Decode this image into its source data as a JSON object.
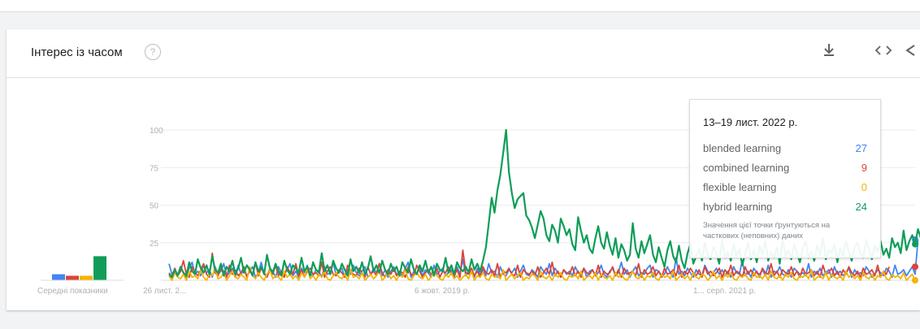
{
  "card": {
    "title": "Інтерес із часом",
    "help_icon": "help-circle-icon",
    "icons": [
      "download-icon",
      "embed-icon",
      "share-icon"
    ]
  },
  "average": {
    "label": "Середні показники",
    "values": [
      4,
      3,
      3,
      16
    ]
  },
  "tooltip": {
    "date": "13–19 лист. 2022 р.",
    "rows": [
      {
        "name": "blended learning",
        "value": "27",
        "color": "#4285f4"
      },
      {
        "name": "combined learning",
        "value": "9",
        "color": "#db4437"
      },
      {
        "name": "flexible learning",
        "value": "0",
        "color": "#f4b400"
      },
      {
        "name": "hybrid learning",
        "value": "24",
        "color": "#0f9d58"
      }
    ],
    "note": "Значення цієї точки ґрунтуються на часткових (неповних) даних"
  },
  "chart_data": {
    "type": "line",
    "title": "Інтерес із часом",
    "ylim": [
      0,
      100
    ],
    "yticks": [
      "100",
      "75",
      "50",
      "25"
    ],
    "xtick_labels": [
      "26 лист. 2...",
      "6 жовт. 2019 р.",
      "1... серп. 2021 р."
    ],
    "grid": true,
    "x_start": "2017-11-26",
    "x_end": "2022-11-19",
    "weeks": 260,
    "series": [
      {
        "name": "blended learning",
        "color": "#4285f4",
        "values": [
          11,
          4,
          7,
          3,
          9,
          5,
          2,
          8,
          12,
          4,
          6,
          3,
          10,
          5,
          7,
          2,
          9,
          4,
          6,
          11,
          3,
          5,
          8,
          2,
          10,
          4,
          7,
          3,
          6,
          9,
          2,
          5,
          12,
          4,
          3,
          8,
          6,
          2,
          9,
          5,
          4,
          7,
          11,
          3,
          6,
          2,
          8,
          5,
          10,
          4,
          3,
          7,
          6,
          2,
          9,
          4,
          5,
          12,
          3,
          6,
          8,
          2,
          7,
          4,
          10,
          5,
          3,
          6,
          9,
          2,
          4,
          8,
          5,
          11,
          3,
          7,
          2,
          6,
          9,
          4,
          5,
          3,
          8,
          12,
          2,
          6,
          4,
          9,
          3,
          7,
          5,
          2,
          10,
          4,
          6,
          8,
          3,
          5,
          7,
          2,
          9,
          4,
          14,
          3,
          6,
          5,
          2,
          8,
          4,
          7,
          3,
          11,
          5,
          6,
          2,
          9,
          4,
          3,
          7,
          5,
          8,
          2,
          6,
          10,
          4,
          3,
          7,
          5,
          2,
          9,
          6,
          4,
          11,
          3,
          8,
          5,
          2,
          7,
          4,
          6,
          3,
          9,
          5,
          4,
          8,
          2,
          6,
          7,
          3,
          5,
          10,
          4,
          2,
          6,
          8,
          3,
          5,
          12,
          4,
          7,
          2,
          6,
          9,
          3,
          5,
          4,
          8,
          10,
          2,
          7,
          6,
          3,
          4,
          9,
          5,
          2,
          15,
          4,
          6,
          3,
          8,
          5,
          2,
          7,
          4,
          3,
          10,
          6,
          2,
          5,
          8,
          4,
          7,
          3,
          6,
          2,
          9,
          5,
          4,
          13,
          3,
          6,
          2,
          8,
          5,
          4,
          7,
          3,
          10,
          2,
          6,
          5,
          9,
          4,
          3,
          7,
          2,
          8,
          6,
          4,
          5,
          3,
          11,
          2,
          6,
          4,
          8,
          3,
          5,
          7,
          2,
          9,
          4,
          6,
          3,
          5,
          8,
          2,
          7,
          4,
          5,
          3,
          9,
          6,
          2,
          4,
          7,
          5,
          3,
          8,
          6,
          2,
          10,
          4,
          5,
          7,
          3,
          6,
          9,
          4,
          27
        ]
      },
      {
        "name": "combined learning",
        "color": "#db4437",
        "values": [
          5,
          2,
          8,
          3,
          6,
          13,
          4,
          2,
          9,
          5,
          3,
          7,
          11,
          4,
          2,
          18,
          5,
          3,
          8,
          6,
          2,
          10,
          4,
          7,
          3,
          5,
          9,
          2,
          6,
          4,
          12,
          3,
          8,
          5,
          2,
          7,
          4,
          10,
          3,
          6,
          2,
          9,
          5,
          4,
          11,
          3,
          7,
          2,
          6,
          8,
          4,
          5,
          3,
          12,
          2,
          6,
          9,
          4,
          3,
          7,
          5,
          2,
          10,
          6,
          4,
          3,
          8,
          5,
          2,
          9,
          4,
          6,
          3,
          11,
          5,
          2,
          7,
          4,
          8,
          3,
          6,
          5,
          2,
          9,
          4,
          3,
          10,
          6,
          2,
          5,
          7,
          4,
          3,
          8,
          2,
          6,
          5,
          9,
          4,
          3,
          7,
          2,
          20,
          5,
          4,
          8,
          3,
          6,
          2,
          9,
          5,
          4,
          7,
          3,
          11,
          2,
          6,
          5,
          8,
          4,
          3,
          10,
          2,
          7,
          5,
          4,
          6,
          3,
          9,
          2,
          5,
          8,
          4,
          12,
          3,
          6,
          2,
          7,
          5,
          4,
          9,
          3,
          6,
          2,
          8,
          5,
          4,
          7,
          3,
          10,
          2,
          6,
          4,
          5,
          9,
          3,
          7,
          2,
          8,
          4,
          5,
          6,
          3,
          11,
          2,
          7,
          4,
          5,
          9,
          3,
          6,
          2,
          8,
          4,
          5,
          7,
          3,
          10,
          2,
          6,
          4,
          8,
          5,
          3,
          7,
          2,
          9,
          4,
          6,
          3,
          5,
          8,
          2,
          7,
          4,
          10,
          3,
          6,
          5,
          2,
          9,
          4,
          7,
          3,
          6,
          2,
          8,
          5,
          4,
          11,
          3,
          6,
          2,
          7,
          5,
          4,
          9,
          3,
          6,
          2,
          8,
          4,
          5,
          7,
          3,
          6,
          2,
          10,
          4,
          5,
          8,
          3,
          6,
          2,
          7,
          4,
          9,
          5,
          3,
          6,
          2,
          8,
          4,
          5,
          7,
          3,
          10,
          2,
          6,
          4,
          9
        ]
      },
      {
        "name": "flexible learning",
        "color": "#f4b400",
        "values": [
          3,
          0,
          5,
          2,
          1,
          4,
          0,
          6,
          2,
          3,
          1,
          7,
          2,
          0,
          4,
          3,
          8,
          1,
          2,
          5,
          0,
          3,
          6,
          2,
          1,
          4,
          2,
          0,
          9,
          3,
          1,
          5,
          2,
          0,
          4,
          7,
          1,
          3,
          2,
          0,
          6,
          2,
          4,
          1,
          3,
          0,
          5,
          2,
          8,
          1,
          3,
          0,
          4,
          2,
          6,
          1,
          0,
          3,
          5,
          2,
          1,
          4,
          0,
          7,
          2,
          3,
          1,
          5,
          0,
          2,
          4,
          1,
          3,
          6,
          0,
          2,
          5,
          1,
          3,
          0,
          4,
          2,
          7,
          1,
          0,
          3,
          5,
          2,
          1,
          4,
          0,
          2,
          6,
          3,
          1,
          0,
          4,
          2,
          5,
          1,
          3,
          0,
          2,
          4,
          1,
          6,
          0,
          3,
          2,
          5,
          1,
          0,
          4,
          2,
          3,
          1,
          7,
          0,
          2,
          4,
          1,
          3,
          5,
          0,
          2,
          1,
          4,
          3,
          0,
          6,
          2,
          1,
          3,
          0,
          4,
          2,
          5,
          1,
          0,
          3,
          2,
          4,
          1,
          6,
          0,
          2,
          3,
          1,
          5,
          0,
          4,
          2,
          1,
          3,
          0,
          5,
          2,
          4,
          1,
          0,
          3,
          6,
          2,
          1,
          4,
          0,
          3,
          2,
          5,
          1,
          0,
          4,
          2,
          3,
          1,
          6,
          0,
          2,
          4,
          1,
          3,
          0,
          5,
          2,
          1,
          4,
          3,
          0,
          2,
          6,
          1,
          3,
          0,
          4,
          2,
          5,
          1,
          0,
          3,
          2,
          4,
          1,
          0,
          5,
          2,
          3,
          1,
          4,
          0,
          6,
          2,
          1,
          3,
          0,
          4,
          2,
          5,
          1,
          0,
          3,
          2,
          4,
          1,
          7,
          0,
          2,
          3,
          1,
          5,
          0,
          4,
          2,
          1,
          3,
          0,
          6,
          2,
          4,
          1,
          3,
          0,
          5,
          2,
          1,
          4,
          0,
          3,
          2,
          6,
          1,
          0,
          4,
          2,
          3,
          1,
          5,
          0,
          2,
          4,
          0
        ]
      },
      {
        "name": "hybrid learning",
        "color": "#0f9d58",
        "values": [
          4,
          2,
          7,
          3,
          9,
          5,
          3,
          12,
          6,
          4,
          14,
          8,
          5,
          10,
          4,
          16,
          7,
          5,
          11,
          3,
          9,
          6,
          13,
          4,
          8,
          15,
          5,
          10,
          7,
          3,
          12,
          6,
          9,
          4,
          17,
          8,
          5,
          11,
          6,
          3,
          13,
          7,
          4,
          10,
          8,
          5,
          15,
          6,
          9,
          3,
          12,
          7,
          5,
          18,
          6,
          10,
          4,
          13,
          8,
          5,
          11,
          7,
          3,
          14,
          6,
          9,
          5,
          12,
          4,
          8,
          16,
          6,
          10,
          5,
          13,
          7,
          4,
          11,
          6,
          9,
          3,
          12,
          8,
          5,
          14,
          7,
          4,
          10,
          6,
          13,
          5,
          9,
          3,
          11,
          7,
          6,
          15,
          5,
          10,
          4,
          12,
          8,
          6,
          9,
          5,
          14,
          7,
          11,
          6,
          13,
          22,
          38,
          55,
          45,
          60,
          70,
          85,
          100,
          72,
          58,
          48,
          54,
          56,
          58,
          43,
          40,
          35,
          28,
          37,
          46,
          41,
          30,
          26,
          37,
          33,
          25,
          41,
          36,
          30,
          34,
          24,
          20,
          42,
          33,
          25,
          30,
          21,
          18,
          28,
          36,
          25,
          21,
          32,
          23,
          17,
          28,
          15,
          24,
          20,
          13,
          17,
          38,
          21,
          15,
          26,
          18,
          24,
          30,
          17,
          12,
          22,
          15,
          9,
          20,
          26,
          16,
          12,
          23,
          13,
          8,
          18,
          24,
          11,
          16,
          21,
          13,
          25,
          17,
          14,
          22,
          18,
          11,
          27,
          15,
          19,
          13,
          24,
          16,
          21,
          10,
          18,
          25,
          14,
          20,
          12,
          23,
          17,
          26,
          13,
          19,
          15,
          22,
          11,
          27,
          16,
          20,
          14,
          24,
          18,
          12,
          21,
          26,
          15,
          19,
          13,
          23,
          17,
          28,
          14,
          20,
          18,
          24,
          12,
          21,
          16,
          26,
          19,
          13,
          22,
          25,
          18,
          15,
          27,
          20,
          14,
          23,
          19,
          26,
          17,
          21,
          15,
          28,
          22,
          25,
          18,
          33,
          20,
          26,
          30,
          24,
          34,
          28,
          24
        ]
      }
    ]
  }
}
